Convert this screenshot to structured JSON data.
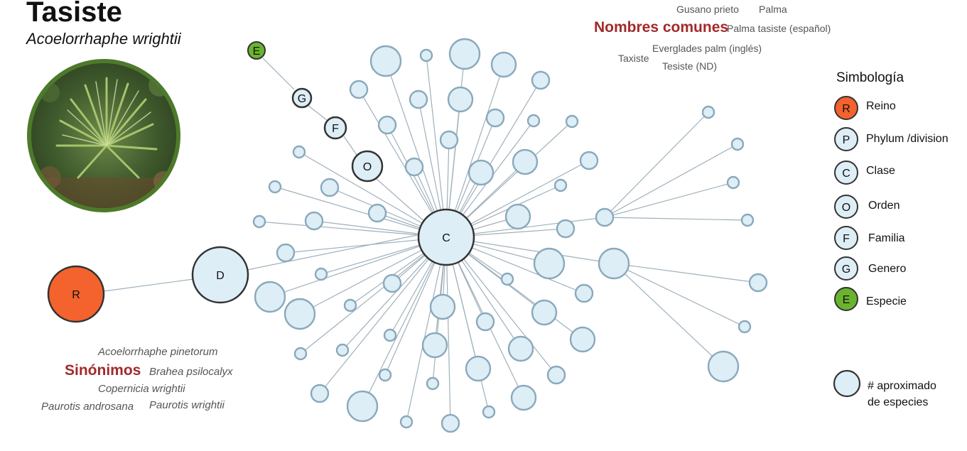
{
  "title": "Tasiste",
  "scientific_name": "Acoelorrhaphe wrightii",
  "common_names": {
    "heading": "Nombres comunes",
    "items": [
      "Gusano prieto",
      "Palma",
      "Palma tasiste (español)",
      "Taxiste",
      "Everglades palm (inglés)",
      "Tesiste (ND)"
    ]
  },
  "synonyms": {
    "heading": "Sinónimos",
    "items": [
      "Acoelorrhaphe pinetorum",
      "Brahea psilocalyx",
      "Copernicia wrightii",
      "Paurotis androsana",
      "Paurotis wrightii"
    ]
  },
  "legend": {
    "title": "Simbología",
    "items": [
      {
        "letter": "R",
        "label": "Reino",
        "color": "#f4622d"
      },
      {
        "letter": "P",
        "label": "Phylum /division",
        "color": "#ddeef7"
      },
      {
        "letter": "C",
        "label": "Clase",
        "color": "#ddeef7"
      },
      {
        "letter": "O",
        "label": "Orden",
        "color": "#ddeef7"
      },
      {
        "letter": "F",
        "label": "Familia",
        "color": "#ddeef7"
      },
      {
        "letter": "G",
        "label": "Genero",
        "color": "#ddeef7"
      },
      {
        "letter": "E",
        "label": "Especie",
        "color": "#6ab42d"
      }
    ],
    "size_note": [
      "# aproximado",
      "de especies"
    ]
  },
  "nodes": {
    "R": "R",
    "D": "D",
    "C": "C",
    "O": "O",
    "F": "F",
    "G": "G",
    "E": "E"
  },
  "colors": {
    "reino": "#f4622d",
    "especie": "#6ab42d",
    "leaf": "#ddeef7",
    "heading": "#a3292b",
    "photo_ring": "#4d7a2a"
  },
  "icons": {
    "photo": "palm-plant-photo"
  }
}
